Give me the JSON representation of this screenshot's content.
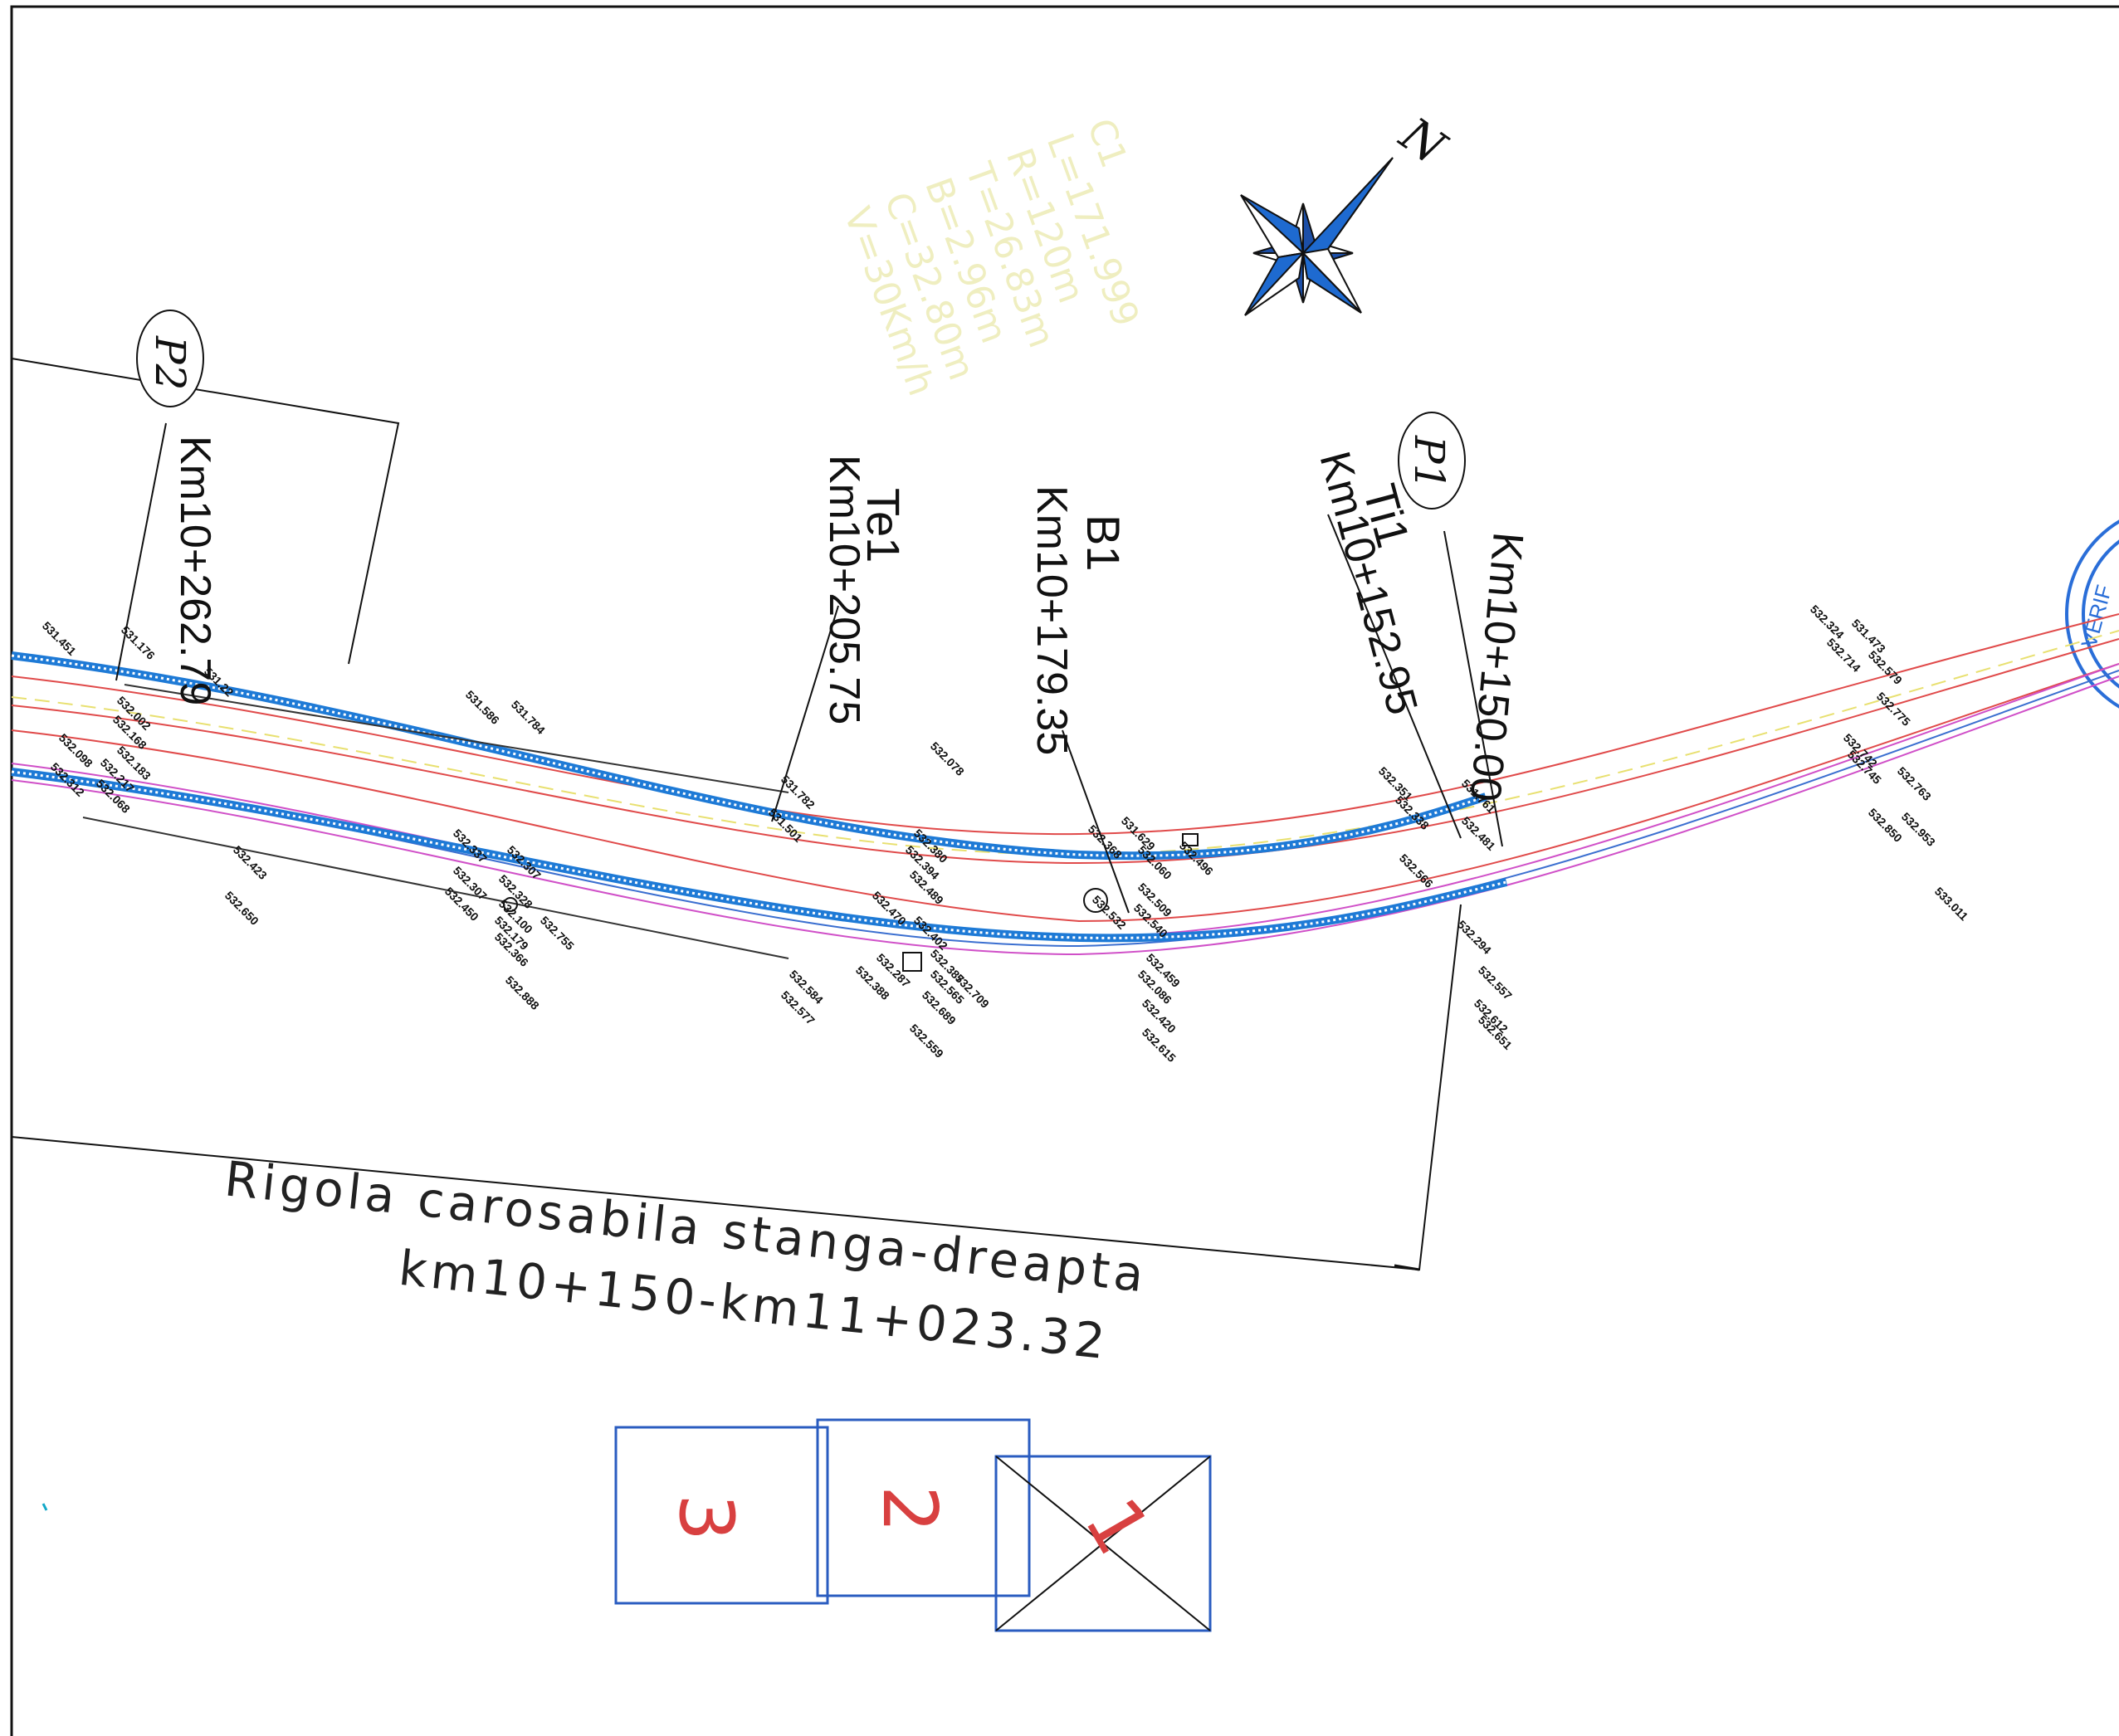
{
  "stations": [
    {
      "code": "P2",
      "km": "Km10+262.79"
    },
    {
      "code": "Te1",
      "km": "Km10+205.75"
    },
    {
      "code": "B1",
      "km": "Km10+179.35"
    },
    {
      "code": "Ti1",
      "km": "Km10+152.95"
    },
    {
      "code": "P1",
      "km": "Km10+150.00"
    }
  ],
  "curve_data": {
    "label": "C1",
    "lines": [
      "L=171.999",
      "R=120m",
      "T=26.83m",
      "B=2.96m",
      "C=32.80m",
      "V=30Km/h"
    ]
  },
  "north_arrow": {
    "label": "N",
    "icon": "compass-rose-icon"
  },
  "title": {
    "line1": "Rigola carosabila stanga-dreapta",
    "line2": "km10+150-km11+023.32"
  },
  "sheet_index": [
    "3",
    "2",
    "1"
  ],
  "stamp_text": "VERIF",
  "elevations_left": [
    "531.451",
    "531.176",
    "532.002",
    "532.168",
    "532.183",
    "532.098",
    "532.312",
    "532.217",
    "532.068",
    "531.22",
    "531.586",
    "531.784",
    "532.307",
    "532.337",
    "532.307",
    "532.450",
    "532.328",
    "532.100",
    "532.179",
    "532.755",
    "532.366",
    "532.888",
    "532.423",
    "532.650"
  ],
  "elevations_mid": [
    "531.782",
    "532.078",
    "531.501",
    "532.380",
    "532.394",
    "532.489",
    "532.470",
    "532.402",
    "532.387",
    "532.287",
    "532.388",
    "532.565",
    "532.689",
    "532.709",
    "532.559",
    "532.584",
    "532.577"
  ],
  "elevations_b1": [
    "531.629",
    "532.368",
    "532.060",
    "532.496",
    "532.509",
    "532.532",
    "532.540",
    "532.459",
    "532.086",
    "532.420",
    "532.615"
  ],
  "elevations_right": [
    "532.351",
    "532.338",
    "531.761",
    "532.481",
    "532.566",
    "532.294",
    "532.557",
    "532.612",
    "532.651"
  ],
  "elevations_far": [
    "532.324",
    "531.473",
    "532.714",
    "532.579",
    "532.742",
    "532.775",
    "532.745",
    "532.763",
    "532.850",
    "532.953",
    "533.011"
  ],
  "colors": {
    "blue_drain": "#1e7ad6",
    "red_edge": "#e04a4a",
    "magenta_edge": "#d050c8",
    "yellow_axis": "#e8e070",
    "frame_blue": "#2a5cc0",
    "sheet_red": "#d84040"
  }
}
